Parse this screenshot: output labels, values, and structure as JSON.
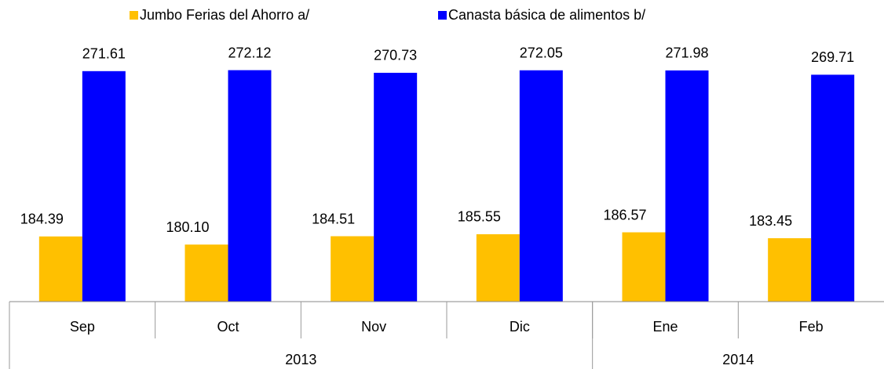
{
  "chart_data": {
    "type": "bar",
    "categories": [
      "Sep",
      "Oct",
      "Nov",
      "Dic",
      "Ene",
      "Feb"
    ],
    "groups": [
      {
        "label": "2013",
        "count": 4
      },
      {
        "label": "2014",
        "count": 2
      }
    ],
    "series": [
      {
        "name": "Jumbo Ferias del Ahorro a/",
        "color": "#ffc000",
        "values": [
          184.39,
          180.1,
          184.51,
          185.55,
          186.57,
          183.45
        ],
        "value_labels": [
          "184.39",
          "180.10",
          "184.51",
          "185.55",
          "186.57",
          "183.45"
        ]
      },
      {
        "name": "Canasta básica de alimentos b/",
        "color": "#0000ff",
        "values": [
          271.61,
          272.12,
          270.73,
          272.05,
          271.98,
          269.71
        ],
        "value_labels": [
          "271.61",
          "272.12",
          "270.73",
          "272.05",
          "271.98",
          "269.71"
        ]
      }
    ],
    "ylim": [
      150,
      290
    ],
    "legend": "top"
  }
}
